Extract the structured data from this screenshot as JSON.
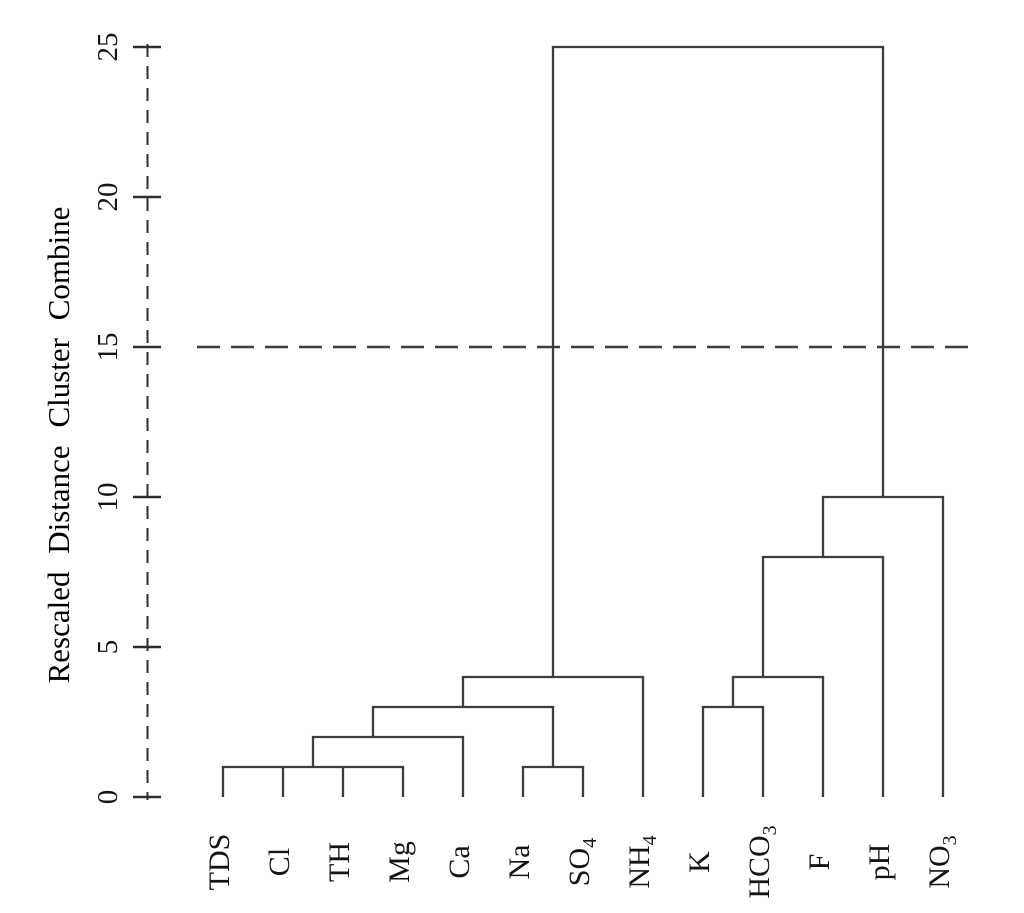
{
  "chart_data": {
    "type": "dendrogram",
    "title": "",
    "ylabel": "Rescaled Distance Cluster Combine",
    "ylim": [
      0,
      25
    ],
    "yticks": [
      0,
      5,
      10,
      15,
      20,
      25
    ],
    "reference_line_y": 15,
    "grid": "off",
    "legend": "none",
    "orientation": "vertical-leaves-bottom",
    "leaves": [
      {
        "base": "TDS",
        "sub": ""
      },
      {
        "base": "Cl",
        "sub": ""
      },
      {
        "base": "TH",
        "sub": ""
      },
      {
        "base": "Mg",
        "sub": ""
      },
      {
        "base": "Ca",
        "sub": ""
      },
      {
        "base": "Na",
        "sub": ""
      },
      {
        "base": "SO",
        "sub": "4"
      },
      {
        "base": "NH",
        "sub": "4"
      },
      {
        "base": "K",
        "sub": ""
      },
      {
        "base": "HCO",
        "sub": "3"
      },
      {
        "base": "F",
        "sub": ""
      },
      {
        "base": "pH",
        "sub": ""
      },
      {
        "base": "NO",
        "sub": "3"
      }
    ],
    "merges": [
      {
        "height": 1,
        "members": "TDS + Cl + TH + Mg"
      },
      {
        "height": 1,
        "members": "Na + SO4"
      },
      {
        "height": 2,
        "members": "(TDS,Cl,TH,Mg) + Ca"
      },
      {
        "height": 3,
        "members": "(TDS,Cl,TH,Mg,Ca) + (Na,SO4)"
      },
      {
        "height": 4,
        "members": "(TDS..SO4) + NH4"
      },
      {
        "height": 3,
        "members": "K + HCO3"
      },
      {
        "height": 4,
        "members": "(K,HCO3) + F"
      },
      {
        "height": 8,
        "members": "(K,HCO3,F) + pH"
      },
      {
        "height": 10,
        "members": "(K,HCO3,F,pH) + NO3"
      },
      {
        "height": 25,
        "members": "left cluster + right cluster"
      }
    ],
    "geometry": {
      "comment_units": "verticals: [leafUnitX, hBottom, hTop]; horizontals: [h, leafUnitX1, leafUnitX2]",
      "verticals": [
        [
          0,
          0,
          1
        ],
        [
          1,
          0,
          1
        ],
        [
          2,
          0,
          1
        ],
        [
          3,
          0,
          1
        ],
        [
          4,
          0,
          2
        ],
        [
          5,
          0,
          1
        ],
        [
          6,
          0,
          1
        ],
        [
          7,
          0,
          4
        ],
        [
          8,
          0,
          3
        ],
        [
          9,
          0,
          3
        ],
        [
          10,
          0,
          4
        ],
        [
          11,
          0,
          8
        ],
        [
          12,
          0,
          10
        ],
        [
          1.5,
          1,
          2
        ],
        [
          2.5,
          2,
          3
        ],
        [
          4,
          3,
          4
        ],
        [
          5.5,
          1,
          3
        ],
        [
          5.5,
          4,
          25
        ],
        [
          8.5,
          3,
          4
        ],
        [
          9,
          4,
          8
        ],
        [
          10,
          8,
          10
        ],
        [
          11,
          10,
          25
        ]
      ],
      "horizontals": [
        [
          1,
          0,
          3
        ],
        [
          1,
          5,
          6
        ],
        [
          2,
          1.5,
          4
        ],
        [
          3,
          2.5,
          5.5
        ],
        [
          4,
          4,
          7
        ],
        [
          3,
          8,
          9
        ],
        [
          4,
          8.5,
          10
        ],
        [
          8,
          9,
          11
        ],
        [
          10,
          10,
          12
        ],
        [
          25,
          5.5,
          11
        ]
      ]
    },
    "colors": {
      "line": "#3d3d3d",
      "axis": "#2e2e2e",
      "text": "#141414",
      "background": "#ffffff"
    }
  }
}
